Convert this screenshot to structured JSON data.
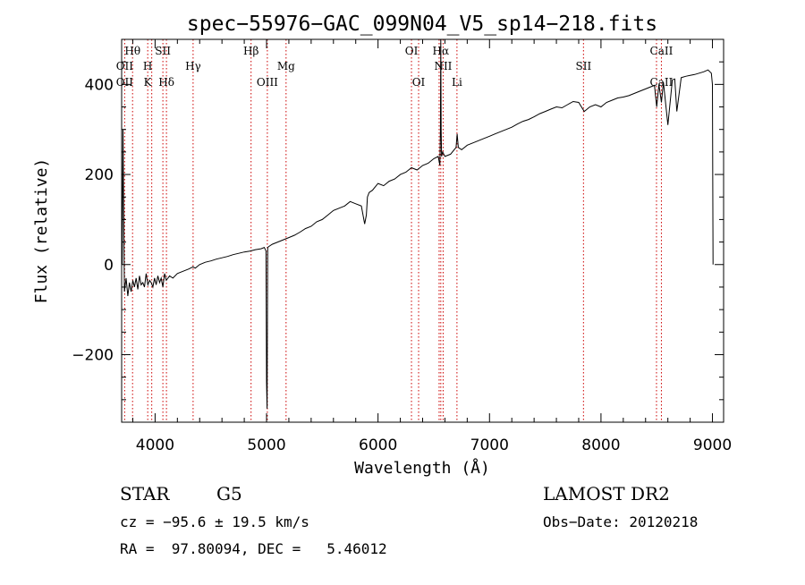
{
  "chart_data": {
    "type": "line",
    "title": "spec−55976−GAC_099N04_V5_sp14−218.fits",
    "xlabel": "Wavelength (Å)",
    "ylabel": "Flux (relative)",
    "xlim": [
      3700,
      9100
    ],
    "ylim": [
      -350,
      500
    ],
    "xticks": [
      4000,
      5000,
      6000,
      7000,
      8000,
      9000
    ],
    "xtick_labels": [
      "4000",
      "5000",
      "6000",
      "7000",
      "8000",
      "9000"
    ],
    "yticks": [
      -200,
      0,
      200,
      400
    ],
    "ytick_labels": [
      "−200",
      "0",
      "200",
      "400"
    ],
    "grid": false,
    "legend": "none",
    "line_color": "#000000",
    "marker_color": "#cc0000",
    "series": [
      {
        "x": [
          3705,
          3712,
          3725,
          3740,
          3755,
          3770,
          3785,
          3800,
          3815,
          3830,
          3845,
          3860,
          3875,
          3890,
          3905,
          3920,
          3935,
          3950,
          3965,
          3980,
          3995,
          4010,
          4025,
          4040,
          4055,
          4070,
          4085,
          4100,
          4130,
          4160,
          4200,
          4250,
          4300,
          4340,
          4360,
          4400,
          4450,
          4500,
          4550,
          4600,
          4650,
          4700,
          4750,
          4800,
          4850,
          4900,
          4950,
          4980,
          4995,
          5000,
          5005,
          5010,
          5020,
          5050,
          5100,
          5150,
          5200,
          5250,
          5300,
          5350,
          5400,
          5450,
          5500,
          5550,
          5600,
          5650,
          5700,
          5750,
          5800,
          5850,
          5880,
          5895,
          5905,
          5920,
          5950,
          6000,
          6050,
          6100,
          6150,
          6200,
          6250,
          6300,
          6350,
          6400,
          6450,
          6500,
          6540,
          6555,
          6560,
          6563,
          6566,
          6570,
          6580,
          6600,
          6650,
          6700,
          6710,
          6720,
          6750,
          6800,
          6850,
          6900,
          6950,
          7000,
          7050,
          7100,
          7150,
          7200,
          7250,
          7300,
          7350,
          7400,
          7450,
          7500,
          7550,
          7600,
          7650,
          7700,
          7750,
          7800,
          7850,
          7900,
          7950,
          8000,
          8050,
          8100,
          8150,
          8200,
          8250,
          8300,
          8350,
          8400,
          8450,
          8480,
          8500,
          8520,
          8542,
          8560,
          8600,
          8640,
          8662,
          8680,
          8720,
          8760,
          8800,
          8840,
          8880,
          8920,
          8960,
          8990,
          9000,
          9005
        ],
        "y": [
          0,
          300,
          -60,
          -30,
          -70,
          -40,
          -60,
          -35,
          -50,
          -30,
          -55,
          -25,
          -45,
          -40,
          -50,
          -20,
          -45,
          -35,
          -40,
          -50,
          -30,
          -45,
          -25,
          -40,
          -30,
          -50,
          -20,
          -35,
          -25,
          -30,
          -20,
          -15,
          -10,
          -5,
          -8,
          0,
          5,
          8,
          12,
          15,
          18,
          22,
          25,
          28,
          30,
          33,
          35,
          38,
          30,
          -260,
          -320,
          38,
          40,
          45,
          50,
          55,
          60,
          65,
          72,
          80,
          85,
          95,
          100,
          110,
          120,
          125,
          130,
          140,
          135,
          130,
          90,
          110,
          150,
          160,
          165,
          180,
          175,
          185,
          190,
          200,
          205,
          215,
          210,
          220,
          225,
          235,
          240,
          220,
          300,
          500,
          300,
          240,
          250,
          240,
          245,
          260,
          290,
          260,
          255,
          265,
          270,
          275,
          280,
          285,
          290,
          295,
          300,
          305,
          312,
          318,
          322,
          328,
          335,
          340,
          345,
          350,
          348,
          355,
          362,
          360,
          340,
          350,
          355,
          350,
          360,
          365,
          370,
          372,
          375,
          380,
          385,
          390,
          395,
          398,
          350,
          400,
          360,
          405,
          310,
          410,
          412,
          340,
          415,
          418,
          420,
          422,
          425,
          428,
          432,
          425,
          400,
          0
        ]
      }
    ],
    "lines": [
      {
        "wave": 3727,
        "top": "OII",
        "bottom": "OII"
      },
      {
        "wave": 3798,
        "top": "Hθ",
        "bottom": ""
      },
      {
        "wave": 3934,
        "top": "H",
        "bottom": "K"
      },
      {
        "wave": 3970,
        "top": "",
        "bottom": ""
      },
      {
        "wave": 4070,
        "top": "SII",
        "bottom": ""
      },
      {
        "wave": 4102,
        "top": "",
        "bottom": "Hδ"
      },
      {
        "wave": 4341,
        "top": "Hγ",
        "bottom": ""
      },
      {
        "wave": 4861,
        "top": "Hβ",
        "bottom": ""
      },
      {
        "wave": 5007,
        "top": "",
        "bottom": "OIII"
      },
      {
        "wave": 5175,
        "top": "Mg",
        "bottom": ""
      },
      {
        "wave": 6300,
        "top": "OI",
        "bottom": ""
      },
      {
        "wave": 6364,
        "top": "",
        "bottom": "OI"
      },
      {
        "wave": 6548,
        "top": "",
        "bottom": ""
      },
      {
        "wave": 6563,
        "top": "Hα",
        "bottom": ""
      },
      {
        "wave": 6584,
        "top": "NII",
        "bottom": ""
      },
      {
        "wave": 6708,
        "top": "",
        "bottom": "Li"
      },
      {
        "wave": 7843,
        "top": "SII",
        "bottom": ""
      },
      {
        "wave": 8498,
        "top": "",
        "bottom": ""
      },
      {
        "wave": 8542,
        "top": "CaII",
        "bottom": "CaII"
      }
    ]
  },
  "info": {
    "class_label": "STAR",
    "subclass": "G5",
    "survey": "LAMOST DR2",
    "redshift": "cz = −95.6 ± 19.5 km/s",
    "obs_date": "Obs−Date: 20120218",
    "coords": "RA =  97.80094, DEC =   5.46012"
  }
}
